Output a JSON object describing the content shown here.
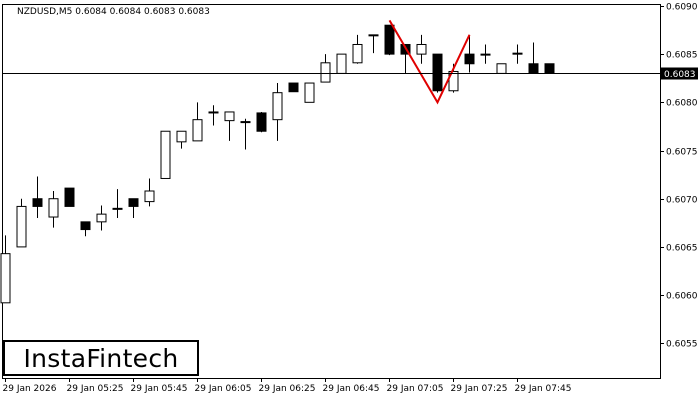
{
  "chart_data": {
    "type": "candlestick",
    "title": "NZDUSD,M5  0.6084 0.6084 0.6083 0.6083",
    "symbol_timeframe": "NZDUSD,M5",
    "ohlc_header": "0.6084 0.6084 0.6083 0.6083",
    "ylim": [
      0.60514,
      0.60902
    ],
    "y_ticks": [
      "0.6090",
      "0.6085",
      "0.6080",
      "0.6075",
      "0.6070",
      "0.6065",
      "0.6060",
      "0.6055"
    ],
    "x_ticks": [
      {
        "index": 0,
        "label": "29 Jan 2026"
      },
      {
        "index": 4,
        "label": "29 Jan 05:25"
      },
      {
        "index": 8,
        "label": "29 Jan 05:45"
      },
      {
        "index": 12,
        "label": "29 Jan 06:05"
      },
      {
        "index": 16,
        "label": "29 Jan 06:25"
      },
      {
        "index": 20,
        "label": "29 Jan 06:45"
      },
      {
        "index": 24,
        "label": "29 Jan 07:05"
      },
      {
        "index": 28,
        "label": "29 Jan 07:25"
      },
      {
        "index": 32,
        "label": "29 Jan 07:45"
      }
    ],
    "current_price": "0.6083",
    "candles": [
      {
        "o": 0.60592,
        "h": 0.60662,
        "l": 0.60592,
        "c": 0.60643
      },
      {
        "o": 0.6065,
        "h": 0.607,
        "l": 0.6065,
        "c": 0.60692
      },
      {
        "o": 0.607,
        "h": 0.60723,
        "l": 0.6068,
        "c": 0.60692
      },
      {
        "o": 0.60681,
        "h": 0.60708,
        "l": 0.6067,
        "c": 0.607
      },
      {
        "o": 0.60711,
        "h": 0.60711,
        "l": 0.60692,
        "c": 0.60692
      },
      {
        "o": 0.60676,
        "h": 0.60676,
        "l": 0.60661,
        "c": 0.60668
      },
      {
        "o": 0.60676,
        "h": 0.60693,
        "l": 0.60667,
        "c": 0.60684
      },
      {
        "o": 0.6069,
        "h": 0.6071,
        "l": 0.6068,
        "c": 0.6069
      },
      {
        "o": 0.607,
        "h": 0.607,
        "l": 0.6068,
        "c": 0.60692
      },
      {
        "o": 0.60697,
        "h": 0.60721,
        "l": 0.60692,
        "c": 0.60708
      },
      {
        "o": 0.60721,
        "h": 0.6077,
        "l": 0.60721,
        "c": 0.6077
      },
      {
        "o": 0.60759,
        "h": 0.6077,
        "l": 0.60752,
        "c": 0.6077
      },
      {
        "o": 0.6076,
        "h": 0.608,
        "l": 0.6076,
        "c": 0.60782
      },
      {
        "o": 0.6079,
        "h": 0.60797,
        "l": 0.60776,
        "c": 0.6079
      },
      {
        "o": 0.60781,
        "h": 0.6079,
        "l": 0.6076,
        "c": 0.6079
      },
      {
        "o": 0.6078,
        "h": 0.60783,
        "l": 0.60751,
        "c": 0.6078
      },
      {
        "o": 0.60789,
        "h": 0.6079,
        "l": 0.60769,
        "c": 0.6077
      },
      {
        "o": 0.60782,
        "h": 0.6082,
        "l": 0.6076,
        "c": 0.6081
      },
      {
        "o": 0.6082,
        "h": 0.6082,
        "l": 0.60811,
        "c": 0.60811
      },
      {
        "o": 0.608,
        "h": 0.6082,
        "l": 0.608,
        "c": 0.6082
      },
      {
        "o": 0.60821,
        "h": 0.6085,
        "l": 0.60821,
        "c": 0.60841
      },
      {
        "o": 0.6083,
        "h": 0.6085,
        "l": 0.6083,
        "c": 0.6085
      },
      {
        "o": 0.60841,
        "h": 0.6087,
        "l": 0.6084,
        "c": 0.6086
      },
      {
        "o": 0.6087,
        "h": 0.6087,
        "l": 0.60851,
        "c": 0.6087
      },
      {
        "o": 0.6088,
        "h": 0.6088,
        "l": 0.60849,
        "c": 0.6085
      },
      {
        "o": 0.6086,
        "h": 0.6086,
        "l": 0.6083,
        "c": 0.6085
      },
      {
        "o": 0.6085,
        "h": 0.6087,
        "l": 0.6084,
        "c": 0.6086
      },
      {
        "o": 0.6085,
        "h": 0.6085,
        "l": 0.6081,
        "c": 0.60812
      },
      {
        "o": 0.60812,
        "h": 0.6084,
        "l": 0.6081,
        "c": 0.60832
      },
      {
        "o": 0.6085,
        "h": 0.6087,
        "l": 0.60831,
        "c": 0.6084
      },
      {
        "o": 0.6085,
        "h": 0.6086,
        "l": 0.6084,
        "c": 0.6085
      },
      {
        "o": 0.6083,
        "h": 0.6084,
        "l": 0.6083,
        "c": 0.6084
      },
      {
        "o": 0.6085,
        "h": 0.6086,
        "l": 0.6084,
        "c": 0.60851
      },
      {
        "o": 0.6084,
        "h": 0.60862,
        "l": 0.6083,
        "c": 0.6083
      },
      {
        "o": 0.6084,
        "h": 0.6084,
        "l": 0.6083,
        "c": 0.6083
      }
    ],
    "pattern_line": {
      "color": "#e00000",
      "points": [
        {
          "index": 24,
          "price": 0.60885
        },
        {
          "index": 27,
          "price": 0.608
        },
        {
          "index": 29,
          "price": 0.6087
        }
      ]
    },
    "colors": {
      "background": "#ffffff",
      "bull": "#ffffff",
      "bear": "#000000",
      "outline": "#000000",
      "pattern": "#e00000"
    }
  },
  "logo": {
    "text": "InstaFintech"
  }
}
